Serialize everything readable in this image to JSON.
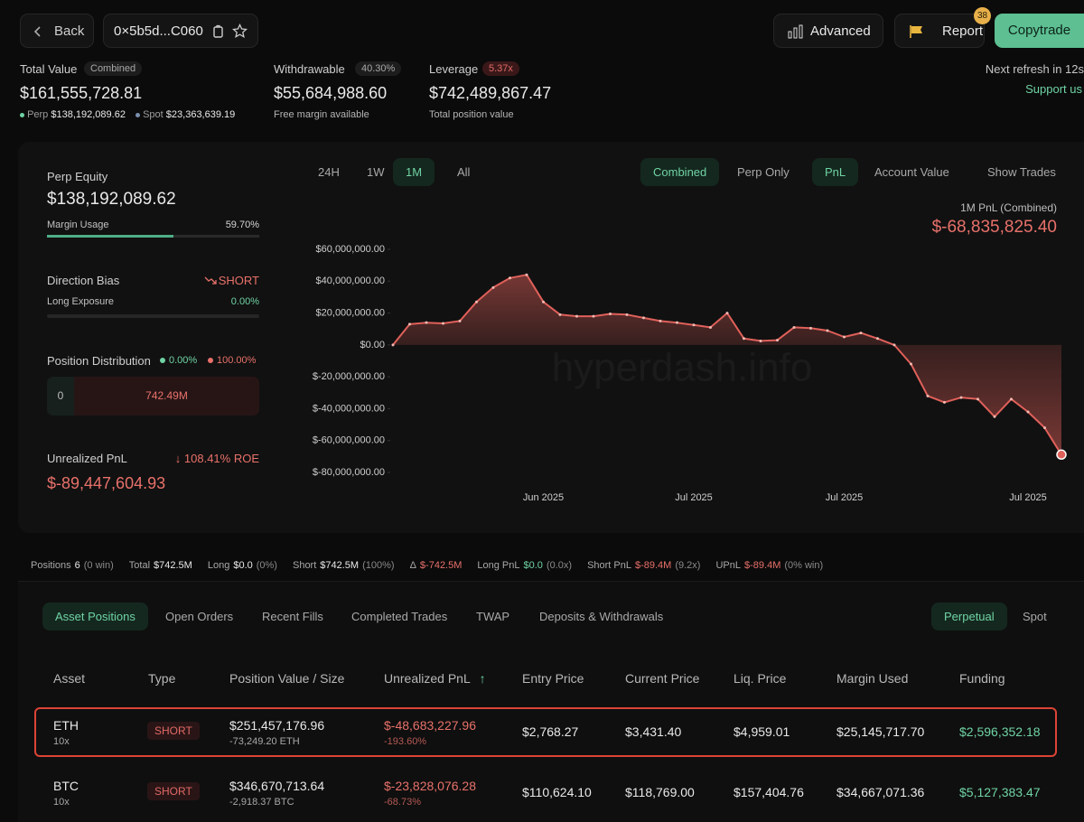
{
  "header": {
    "back": "Back",
    "address": "0×5b5d...C060",
    "advanced": "Advanced",
    "report": "Report",
    "report_count": "38",
    "copytrade": "Copytrade",
    "refresh": "Next refresh in 12s",
    "support": "Support us"
  },
  "summary": {
    "total": {
      "label": "Total Value",
      "tag": "Combined",
      "value": "$161,555,728.81",
      "perp_label": "Perp",
      "perp_value": "$138,192,089.62",
      "spot_label": "Spot",
      "spot_value": "$23,363,639.19"
    },
    "withdrawable": {
      "label": "Withdrawable",
      "tag": "40.30%",
      "value": "$55,684,988.60",
      "note": "Free margin available"
    },
    "leverage": {
      "label": "Leverage",
      "tag": "5.37x",
      "value": "$742,489,867.47",
      "note": "Total position value"
    }
  },
  "side_panel": {
    "perp_equity_label": "Perp Equity",
    "perp_equity": "$138,192,089.62",
    "margin_usage_label": "Margin Usage",
    "margin_usage": "59.70%",
    "bias_label": "Direction Bias",
    "bias": "SHORT",
    "long_exposure_label": "Long Exposure",
    "long_exposure": "0.00%",
    "distribution_label": "Position Distribution",
    "long_share": "0.00%",
    "short_share": "100.00%",
    "long_amount": "0",
    "short_amount": "742.49M",
    "upnl_label": "Unrealized PnL",
    "roe": "108.41% ROE",
    "upnl": "$-89,447,604.93"
  },
  "chart_tabs": {
    "ranges": [
      {
        "label": "24H"
      },
      {
        "label": "1W"
      },
      {
        "label": "1M",
        "active": true
      },
      {
        "label": "All"
      }
    ],
    "modes": [
      {
        "label": "Combined",
        "active": true
      },
      {
        "label": "Perp Only"
      }
    ],
    "metrics": [
      {
        "label": "PnL",
        "active": true
      },
      {
        "label": "Account Value"
      }
    ],
    "show_trades": "Show Trades"
  },
  "chart_data": {
    "type": "area",
    "title": "1M PnL (Combined)",
    "annotation": "$-68,835,825.40",
    "watermark": "hyperdash.info",
    "categories": [
      null,
      null,
      null,
      null,
      null,
      null,
      null,
      null,
      null,
      "Jun 2025",
      null,
      null,
      null,
      null,
      null,
      null,
      null,
      null,
      "Jul 2025",
      null,
      null,
      null,
      null,
      null,
      null,
      null,
      null,
      "Jul 2025",
      null,
      null,
      null,
      null,
      null,
      null,
      null,
      null,
      null,
      null,
      "Jul 2025",
      null,
      null
    ],
    "values": [
      0,
      13000000,
      14000000,
      13500000,
      15000000,
      27000000,
      36000000,
      42000000,
      44000000,
      27000000,
      19000000,
      18000000,
      18000000,
      19500000,
      19000000,
      17000000,
      15000000,
      14000000,
      12500000,
      11000000,
      20000000,
      4000000,
      2500000,
      3000000,
      11000000,
      10500000,
      9000000,
      5000000,
      7500000,
      4000000,
      0,
      -12000000,
      -32000000,
      -36000000,
      -33000000,
      -34000000,
      -45000000,
      -34000000,
      -42000000,
      -52000000,
      -68835825.4
    ],
    "color": "#e0605a",
    "ylim": [
      -80000000,
      60000000
    ],
    "yticks": [
      {
        "value": 60000000,
        "label": "$60,000,000.00"
      },
      {
        "value": 40000000,
        "label": "$40,000,000.00"
      },
      {
        "value": 20000000,
        "label": "$20,000,000.00"
      },
      {
        "value": 0,
        "label": "$0.00"
      },
      {
        "value": -20000000,
        "label": "$-20,000,000.00"
      },
      {
        "value": -40000000,
        "label": "$-40,000,000.00"
      },
      {
        "value": -60000000,
        "label": "$-60,000,000.00"
      },
      {
        "value": -80000000,
        "label": "$-80,000,000.00"
      }
    ],
    "grid": false
  },
  "stats": [
    {
      "label": "Positions",
      "value": "6",
      "note": "(0 win)"
    },
    {
      "label": "Total",
      "value": "$742.5M"
    },
    {
      "label": "Long",
      "value": "$0.0",
      "note": "(0%)"
    },
    {
      "label": "Short",
      "value": "$742.5M",
      "note": "(100%)"
    },
    {
      "label": "Δ",
      "value": "$-742.5M"
    },
    {
      "label": "Long PnL",
      "value": "$0.0",
      "note": "(0.0x)"
    },
    {
      "label": "Short PnL",
      "value": "$-89.4M",
      "note": "(9.2x)"
    },
    {
      "label": "UPnL",
      "value": "$-89.4M",
      "note": "(0% win)"
    }
  ],
  "tabs": {
    "sections": [
      {
        "label": "Asset Positions",
        "active": true
      },
      {
        "label": "Open Orders"
      },
      {
        "label": "Recent Fills"
      },
      {
        "label": "Completed Trades"
      },
      {
        "label": "TWAP"
      },
      {
        "label": "Deposits & Withdrawals"
      }
    ],
    "markets": [
      {
        "label": "Perpetual",
        "active": true
      },
      {
        "label": "Spot"
      }
    ]
  },
  "table": {
    "columns": [
      "Asset",
      "Type",
      "Position Value / Size",
      "Unrealized PnL",
      "Entry Price",
      "Current Price",
      "Liq. Price",
      "Margin Used",
      "Funding"
    ],
    "rows": [
      {
        "asset": "ETH",
        "leverage": "10x",
        "type": "SHORT",
        "value": "$251,457,176.96",
        "size": "-73,249.20 ETH",
        "pnl": "$-48,683,227.96",
        "pnl_pct": "-193.60%",
        "entry": "$2,768.27",
        "current": "$3,431.40",
        "liq": "$4,959.01",
        "margin": "$25,145,717.70",
        "funding": "$2,596,352.18"
      },
      {
        "asset": "BTC",
        "leverage": "10x",
        "type": "SHORT",
        "value": "$346,670,713.64",
        "size": "-2,918.37 BTC",
        "pnl": "$-23,828,076.28",
        "pnl_pct": "-68.73%",
        "entry": "$110,624.10",
        "current": "$118,769.00",
        "liq": "$157,404.76",
        "margin": "$34,667,071.36",
        "funding": "$5,127,383.47"
      }
    ]
  }
}
